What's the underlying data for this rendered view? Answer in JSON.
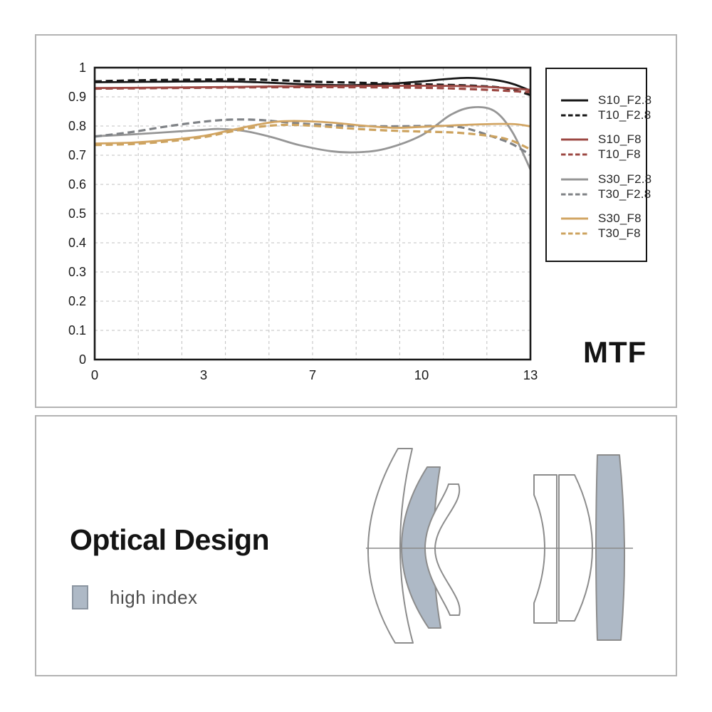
{
  "mtf_panel": {
    "corner_label": "MTF",
    "chart_data": {
      "type": "line",
      "title": "MTF",
      "xlabel": "",
      "ylabel": "",
      "ylim": [
        0,
        1
      ],
      "grid": true,
      "legend_position": "right",
      "x_tick_labels": [
        "0",
        "3",
        "7",
        "10",
        "13"
      ],
      "x_tick_values": [
        0,
        3,
        7,
        10,
        13
      ],
      "y_tick_labels": [
        "1",
        "0.9",
        "0.8",
        "0.7",
        "0.6",
        "0.5",
        "0.4",
        "0.3",
        "0.2",
        "0.1",
        "0"
      ],
      "y_tick_values": [
        1,
        0.9,
        0.8,
        0.7,
        0.6,
        0.5,
        0.4,
        0.3,
        0.2,
        0.1,
        0
      ],
      "series": [
        {
          "name": "S10_F2.8",
          "color": "#161616",
          "line_style": "solid",
          "x": [
            0,
            1,
            2,
            3,
            4,
            5,
            6,
            7,
            8,
            9,
            10,
            10.7,
            11.3,
            12,
            12.5,
            13
          ],
          "y": [
            0.95,
            0.951,
            0.952,
            0.953,
            0.953,
            0.95,
            0.946,
            0.942,
            0.94,
            0.944,
            0.953,
            0.961,
            0.965,
            0.958,
            0.945,
            0.921
          ]
        },
        {
          "name": "T10_F2.8",
          "color": "#161616",
          "line_style": "dashed",
          "x": [
            0,
            1,
            2,
            3,
            4,
            5,
            6,
            7,
            8,
            9,
            10,
            11,
            12,
            12.5,
            13
          ],
          "y": [
            0.953,
            0.956,
            0.958,
            0.959,
            0.96,
            0.959,
            0.956,
            0.952,
            0.949,
            0.946,
            0.943,
            0.94,
            0.934,
            0.925,
            0.906
          ]
        },
        {
          "name": "S10_F8",
          "color": "#9c4843",
          "line_style": "solid",
          "x": [
            0,
            2,
            4,
            6,
            8,
            10,
            11,
            12,
            13
          ],
          "y": [
            0.93,
            0.932,
            0.934,
            0.936,
            0.937,
            0.938,
            0.937,
            0.933,
            0.924
          ]
        },
        {
          "name": "T10_F8",
          "color": "#9c4843",
          "line_style": "dashed",
          "x": [
            0,
            2,
            4,
            6,
            8,
            10,
            11,
            12,
            13
          ],
          "y": [
            0.928,
            0.93,
            0.932,
            0.933,
            0.933,
            0.931,
            0.928,
            0.923,
            0.916
          ]
        },
        {
          "name": "S30_F2.8",
          "color": "#969696",
          "line_style": "solid",
          "x": [
            0,
            1,
            2,
            3,
            3.6,
            4.5,
            5.5,
            6.5,
            7.5,
            8.2,
            9,
            10,
            10.8,
            11.4,
            12,
            12.5,
            13
          ],
          "y": [
            0.765,
            0.771,
            0.779,
            0.787,
            0.79,
            0.783,
            0.762,
            0.735,
            0.714,
            0.71,
            0.722,
            0.768,
            0.838,
            0.864,
            0.852,
            0.78,
            0.651
          ]
        },
        {
          "name": "T30_F2.8",
          "color": "#7f8286",
          "line_style": "dashed",
          "x": [
            0,
            1,
            2,
            3,
            4,
            5,
            6,
            7,
            8,
            9,
            10,
            10.6,
            11.2,
            12,
            12.5,
            13
          ],
          "y": [
            0.764,
            0.779,
            0.799,
            0.815,
            0.822,
            0.821,
            0.813,
            0.806,
            0.801,
            0.799,
            0.8,
            0.8,
            0.793,
            0.762,
            0.738,
            0.701
          ]
        },
        {
          "name": "S30_F8",
          "color": "#d2a563",
          "line_style": "solid",
          "x": [
            0,
            1,
            2,
            3,
            4,
            5,
            5.7,
            6.5,
            7.5,
            8.5,
            9.3,
            10,
            11,
            12,
            12.6,
            13
          ],
          "y": [
            0.74,
            0.743,
            0.752,
            0.766,
            0.786,
            0.805,
            0.815,
            0.817,
            0.812,
            0.8,
            0.794,
            0.797,
            0.803,
            0.807,
            0.806,
            0.799
          ]
        },
        {
          "name": "T30_F8",
          "color": "#cda35f",
          "line_style": "dashed",
          "x": [
            0,
            1,
            2,
            3,
            4,
            5,
            6,
            7,
            8,
            9,
            10,
            11,
            12,
            12.5,
            13
          ],
          "y": [
            0.735,
            0.738,
            0.747,
            0.762,
            0.781,
            0.797,
            0.804,
            0.801,
            0.792,
            0.785,
            0.781,
            0.777,
            0.764,
            0.749,
            0.72
          ]
        }
      ]
    }
  },
  "optical_panel": {
    "title": "Optical Design",
    "legend_label": "high index",
    "element_count": 6,
    "high_index_elements": [
      2,
      6
    ],
    "high_index_fill": "#aeb9c6"
  },
  "colors": {
    "panel_border": "#b3b3b3",
    "axis_frame": "#1a1a1a",
    "grid_line": "#c0c0c0",
    "lens_outline": "#8c8c8c",
    "optical_axis": "#8a8a8a"
  }
}
